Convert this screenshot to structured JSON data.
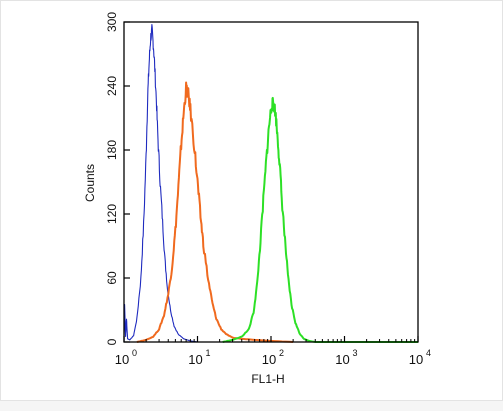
{
  "chart_data": {
    "type": "line",
    "xlabel": "FL1-H",
    "ylabel": "Counts",
    "x_scale": "log",
    "xlim": [
      1,
      10000
    ],
    "ylim": [
      0,
      300
    ],
    "x_ticks": [
      {
        "base": "10",
        "exp": "0"
      },
      {
        "base": "10",
        "exp": "1"
      },
      {
        "base": "10",
        "exp": "2"
      },
      {
        "base": "10",
        "exp": "3"
      },
      {
        "base": "10",
        "exp": "4"
      }
    ],
    "y_ticks": [
      "0",
      "60",
      "120",
      "180",
      "240",
      "300"
    ],
    "series": [
      {
        "color": "#1f2bbf",
        "points": [
          [
            1,
            0
          ],
          [
            1.02,
            35
          ],
          [
            1.05,
            5
          ],
          [
            1.08,
            22
          ],
          [
            1.12,
            3
          ],
          [
            1.2,
            2
          ],
          [
            1.35,
            6
          ],
          [
            1.5,
            22
          ],
          [
            1.7,
            60
          ],
          [
            1.85,
            110
          ],
          [
            2.0,
            175
          ],
          [
            2.1,
            230
          ],
          [
            2.2,
            262
          ],
          [
            2.3,
            285
          ],
          [
            2.4,
            292
          ],
          [
            2.5,
            280
          ],
          [
            2.6,
            262
          ],
          [
            2.75,
            228
          ],
          [
            2.9,
            190
          ],
          [
            3.1,
            150
          ],
          [
            3.35,
            112
          ],
          [
            3.6,
            78
          ],
          [
            3.9,
            50
          ],
          [
            4.3,
            30
          ],
          [
            4.8,
            15
          ],
          [
            5.5,
            7
          ],
          [
            6.5,
            3
          ],
          [
            8,
            1
          ],
          [
            10,
            0
          ]
        ]
      },
      {
        "color": "#f06a1f",
        "points": [
          [
            1.5,
            0
          ],
          [
            2,
            2
          ],
          [
            2.5,
            5
          ],
          [
            3,
            12
          ],
          [
            3.5,
            25
          ],
          [
            4,
            45
          ],
          [
            4.5,
            70
          ],
          [
            5,
            105
          ],
          [
            5.5,
            145
          ],
          [
            6,
            185
          ],
          [
            6.5,
            215
          ],
          [
            7,
            238
          ],
          [
            7.5,
            232
          ],
          [
            8,
            218
          ],
          [
            9,
            185
          ],
          [
            10,
            150
          ],
          [
            11,
            118
          ],
          [
            12,
            92
          ],
          [
            14,
            58
          ],
          [
            16,
            36
          ],
          [
            18,
            22
          ],
          [
            21,
            12
          ],
          [
            25,
            7
          ],
          [
            30,
            4
          ],
          [
            40,
            3
          ],
          [
            60,
            2
          ],
          [
            100,
            1
          ],
          [
            200,
            0
          ]
        ]
      },
      {
        "color": "#2de026",
        "points": [
          [
            22,
            0
          ],
          [
            30,
            2
          ],
          [
            40,
            5
          ],
          [
            50,
            12
          ],
          [
            58,
            28
          ],
          [
            65,
            55
          ],
          [
            72,
            95
          ],
          [
            80,
            140
          ],
          [
            88,
            178
          ],
          [
            95,
            205
          ],
          [
            102,
            222
          ],
          [
            108,
            224
          ],
          [
            115,
            215
          ],
          [
            122,
            195
          ],
          [
            130,
            170
          ],
          [
            140,
            135
          ],
          [
            155,
            95
          ],
          [
            170,
            62
          ],
          [
            190,
            35
          ],
          [
            215,
            18
          ],
          [
            245,
            8
          ],
          [
            280,
            3
          ],
          [
            330,
            1
          ],
          [
            400,
            0
          ],
          [
            10000,
            0
          ]
        ]
      }
    ]
  }
}
